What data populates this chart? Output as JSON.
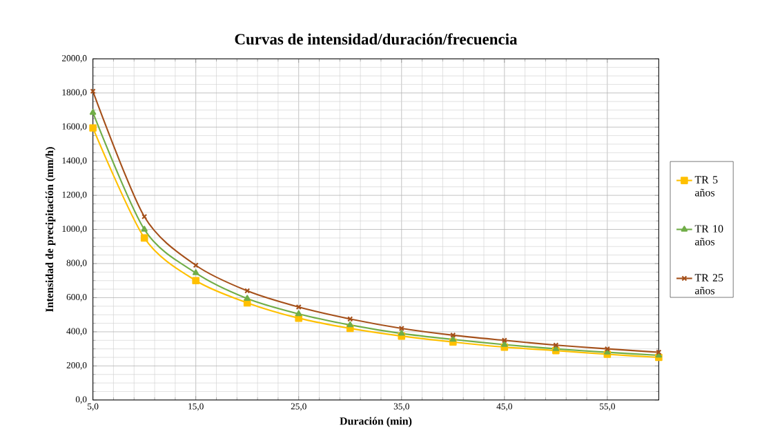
{
  "chart_data": {
    "type": "line",
    "title": "Curvas de intensidad/duración/frecuencia",
    "xlabel": "Duración (min)",
    "ylabel": "Intensidad de precipitación (mm/h)",
    "x": [
      5,
      10,
      15,
      20,
      25,
      30,
      35,
      40,
      45,
      50,
      55,
      60
    ],
    "series": [
      {
        "name": "TR 5 años",
        "color": "#ffc000",
        "marker": "square",
        "values": [
          1595,
          950,
          700,
          570,
          480,
          420,
          375,
          340,
          310,
          290,
          268,
          250
        ]
      },
      {
        "name": "TR 10 años",
        "color": "#70ad47",
        "marker": "triangle",
        "values": [
          1685,
          1000,
          745,
          595,
          505,
          440,
          390,
          355,
          325,
          300,
          280,
          262
        ]
      },
      {
        "name": "TR 25 años",
        "color": "#a5501a",
        "marker": "cross",
        "values": [
          1810,
          1075,
          790,
          640,
          545,
          475,
          420,
          380,
          350,
          322,
          300,
          280
        ]
      }
    ],
    "xlim": [
      5,
      60
    ],
    "xticks": [
      {
        "value": 5,
        "label": "5,0"
      },
      {
        "value": 15,
        "label": "15,0"
      },
      {
        "value": 25,
        "label": "25,0"
      },
      {
        "value": 35,
        "label": "35,0"
      },
      {
        "value": 45,
        "label": "45,0"
      },
      {
        "value": 55,
        "label": "55,0"
      }
    ],
    "ylim": [
      0,
      2000
    ],
    "yticks": [
      {
        "value": 0,
        "label": "0,0"
      },
      {
        "value": 200,
        "label": "200,0"
      },
      {
        "value": 400,
        "label": "400,0"
      },
      {
        "value": 600,
        "label": "600,0"
      },
      {
        "value": 800,
        "label": "800,0"
      },
      {
        "value": 1000,
        "label": "1000,0"
      },
      {
        "value": 1200,
        "label": "1200,0"
      },
      {
        "value": 1400,
        "label": "1400,0"
      },
      {
        "value": 1600,
        "label": "1600,0"
      },
      {
        "value": 1800,
        "label": "1800,0"
      },
      {
        "value": 2000,
        "label": "2000,0"
      }
    ],
    "grid": true,
    "legend": "right",
    "line_style": "solid"
  }
}
